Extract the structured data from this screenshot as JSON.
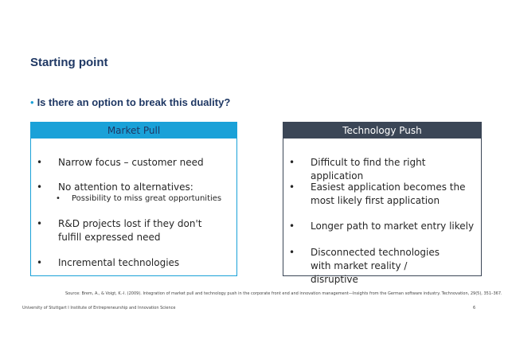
{
  "slide": {
    "title": "Starting point",
    "question_bullet": "•",
    "question": "Is there an option to break this duality?"
  },
  "left_box": {
    "header": "Market Pull",
    "items": [
      {
        "bullet": "•",
        "text": "Narrow focus – customer need"
      },
      {
        "bullet": "•",
        "text": "No attention to alternatives:"
      },
      {
        "bullet": "•",
        "text": "Possibility to miss great opportunities"
      },
      {
        "bullet": "•",
        "text": "R&D projects lost if they don't fulfill expressed need"
      },
      {
        "bullet": "•",
        "text": "Incremental technologies"
      }
    ]
  },
  "right_box": {
    "header": "Technology Push",
    "items": [
      {
        "bullet": "•",
        "text": "Difficult to find the right application"
      },
      {
        "bullet": "•",
        "text": "Easiest application becomes the most likely first application"
      },
      {
        "bullet": "•",
        "text": "Longer path to market entry likely"
      },
      {
        "bullet": "•",
        "text": "Disconnected technologies with market reality / disruptive"
      }
    ]
  },
  "source": "Source: Brem, A., & Voigt, K.-I. (2009). Integration of market pull and technology push in the corporate front end and innovation management—Insights from the German software industry. Technovation, 29(5), 351–367.",
  "footer": "University of Stuttgart I Institute of Entrepreneurship and Innovation Science",
  "page_number": "6"
}
